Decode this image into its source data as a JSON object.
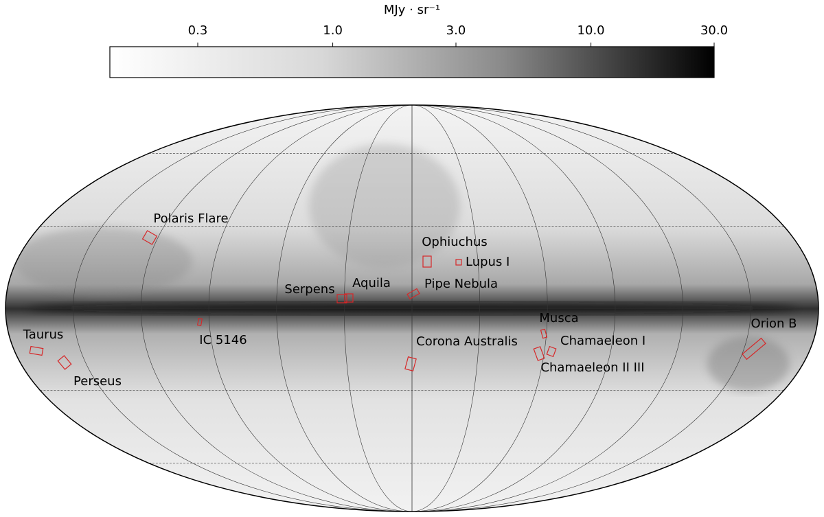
{
  "colorbar": {
    "label": "MJy · sr⁻¹",
    "log": true,
    "lim": [
      0.137,
      30
    ],
    "ticks": [
      0.3,
      {
        "value": 1,
        "label": "1.0"
      },
      {
        "value": 3,
        "label": "3.0"
      },
      {
        "value": 10,
        "label": "10.0"
      },
      {
        "value": 30,
        "label": "30.0"
      }
    ]
  },
  "regions": [
    {
      "label": "Polaris Flare"
    },
    {
      "label": "Ophiuchus"
    },
    {
      "label": "Lupus I"
    },
    {
      "label": "Serpens"
    },
    {
      "label": "Aquila"
    },
    {
      "label": "Pipe Nebula"
    },
    {
      "label": "Musca"
    },
    {
      "label": "Orion B"
    },
    {
      "label": "Taurus"
    },
    {
      "label": "IC 5146"
    },
    {
      "label": "Corona Australis"
    },
    {
      "label": "Chamaeleon I"
    },
    {
      "label": "Perseus"
    },
    {
      "label": "Chamaeleon II III"
    }
  ]
}
